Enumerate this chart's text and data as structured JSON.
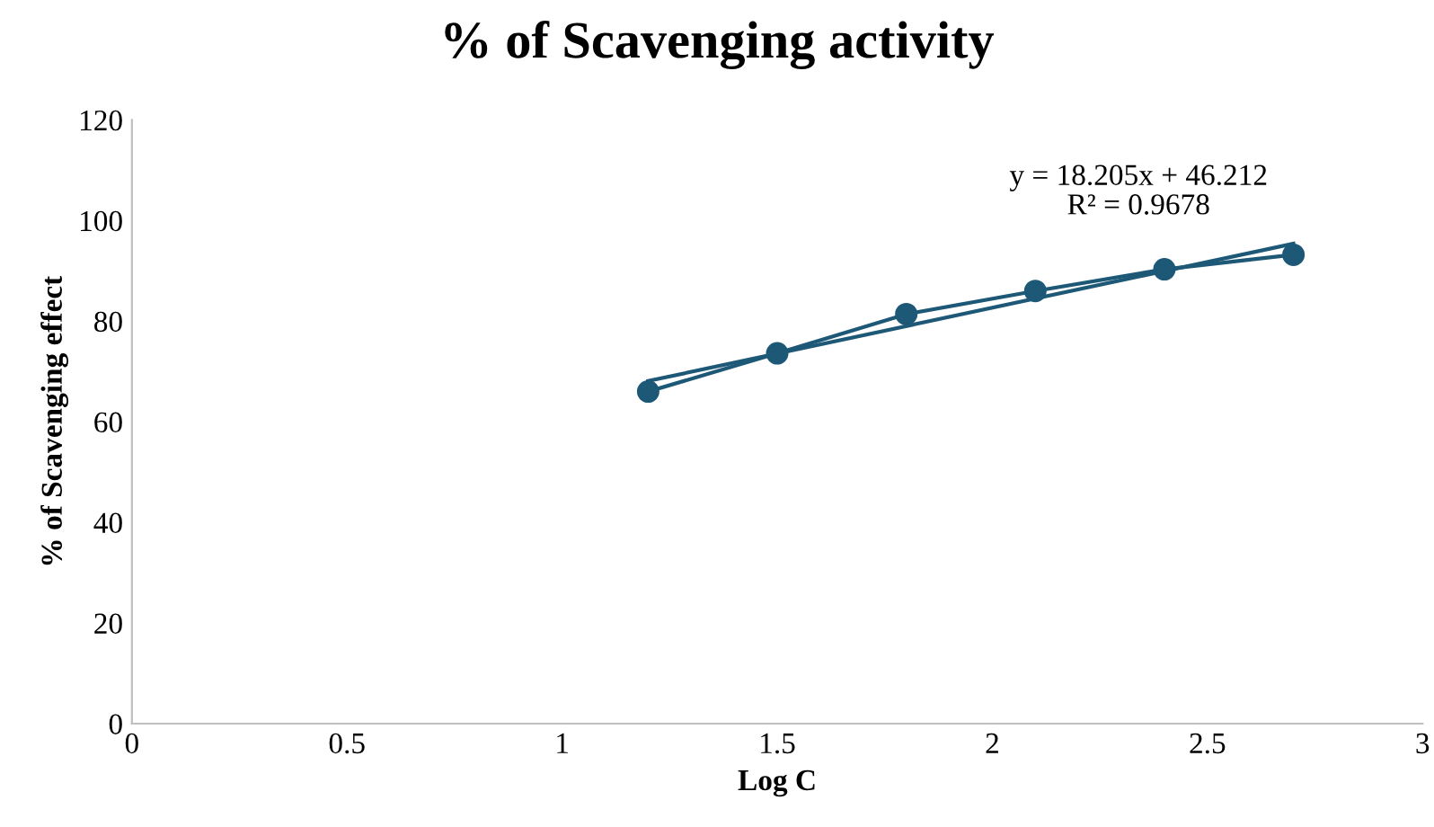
{
  "chart_data": {
    "type": "line",
    "title": "% of Scavenging activity",
    "xlabel": "Log C",
    "ylabel": "% of Scavenging effect",
    "xlim": [
      0,
      3
    ],
    "xticks": [
      0,
      0.5,
      1,
      1.5,
      2,
      2.5,
      3
    ],
    "ylim": [
      0,
      120
    ],
    "yticks": [
      0,
      20,
      40,
      60,
      80,
      100,
      120
    ],
    "grid": false,
    "legend": false,
    "series": [
      {
        "marker": "circle",
        "color": "#1d5877",
        "x": [
          1.2,
          1.5,
          1.8,
          2.1,
          2.4,
          2.7
        ],
        "values": [
          66,
          73.6,
          81.4,
          86,
          90.3,
          93.2
        ]
      },
      {
        "marker": "none",
        "color": "#1d5877",
        "x": [
          1.2,
          2.7
        ],
        "values": [
          68.1,
          95.4
        ]
      }
    ],
    "annotations": [
      "y = 18.205x + 46.212\nR² = 0.9678"
    ]
  }
}
